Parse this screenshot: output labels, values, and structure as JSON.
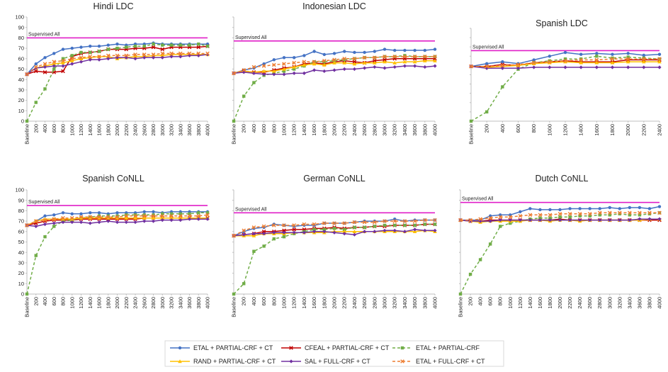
{
  "colors": {
    "etal_pcrf_ct": "#4472C4",
    "cfeal_pcrf_ct": "#C00000",
    "etal_pcrf": "#70AD47",
    "rand_pcrf_ct": "#FFC000",
    "sal_fcrf_ct": "#7030A0",
    "etal_fcrf_ct": "#ED7D31",
    "supervised": "#E020C8",
    "axis": "#BFBFBF"
  },
  "legend": [
    {
      "key": "etal_pcrf_ct",
      "label": "ETAL + PARTIAL-CRF + CT",
      "marker": "circle",
      "dash": false
    },
    {
      "key": "cfeal_pcrf_ct",
      "label": "CFEAL + PARTIAL-CRF + CT",
      "marker": "x",
      "dash": false
    },
    {
      "key": "etal_pcrf",
      "label": "ETAL + PARTIAL-CRF",
      "marker": "square",
      "dash": true
    },
    {
      "key": "rand_pcrf_ct",
      "label": "RAND + PARTIAL-CRF + CT",
      "marker": "triangle",
      "dash": false
    },
    {
      "key": "sal_fcrf_ct",
      "label": "SAL + FULL-CRF + CT",
      "marker": "diamond",
      "dash": false
    },
    {
      "key": "etal_fcrf_ct",
      "label": "ETAL + FULL-CRF + CT",
      "marker": "x",
      "dash": true
    }
  ],
  "chart_data": [
    {
      "type": "line",
      "title": "Hindi LDC",
      "x": [
        "Baseline",
        "200",
        "400",
        "600",
        "800",
        "1000",
        "1200",
        "1400",
        "1600",
        "1800",
        "2000",
        "2200",
        "2400",
        "2600",
        "2800",
        "3000",
        "3200",
        "3400",
        "3600",
        "3800",
        "4000"
      ],
      "y_ticks": [
        "0",
        "10",
        "20",
        "30",
        "40",
        "50",
        "60",
        "70",
        "80",
        "90",
        "100"
      ],
      "ylim": [
        0,
        100
      ],
      "supervised": {
        "label": "Supervised All",
        "value": 80
      },
      "series": [
        {
          "key": "etal_pcrf_ct",
          "values": [
            45,
            55,
            61,
            65,
            69,
            70,
            71,
            72,
            72,
            73,
            74,
            73,
            74,
            74,
            75,
            74,
            74,
            74,
            74,
            74,
            74
          ]
        },
        {
          "key": "cfeal_pcrf_ct",
          "values": [
            45,
            48,
            47,
            47,
            48,
            62,
            65,
            66,
            67,
            69,
            69,
            69,
            70,
            70,
            71,
            69,
            71,
            71,
            71,
            71,
            72
          ]
        },
        {
          "key": "etal_pcrf",
          "values": [
            0,
            18,
            31,
            50,
            60,
            63,
            66,
            66,
            67,
            69,
            70,
            71,
            72,
            72,
            74,
            73,
            73,
            73,
            73,
            74,
            72
          ]
        },
        {
          "key": "rand_pcrf_ct",
          "values": [
            45,
            51,
            53,
            55,
            56,
            58,
            60,
            61,
            62,
            62,
            60,
            61,
            62,
            62,
            63,
            63,
            64,
            64,
            64,
            64,
            64
          ]
        },
        {
          "key": "sal_fcrf_ct",
          "values": [
            45,
            51,
            52,
            53,
            53,
            55,
            57,
            59,
            59,
            60,
            61,
            61,
            60,
            61,
            61,
            61,
            62,
            62,
            63,
            63,
            64
          ]
        },
        {
          "key": "etal_fcrf_ct",
          "values": [
            45,
            52,
            55,
            57,
            58,
            60,
            61,
            62,
            62,
            63,
            63,
            63,
            64,
            64,
            64,
            65,
            65,
            65,
            65,
            65,
            65
          ]
        }
      ]
    },
    {
      "type": "line",
      "title": "Indonesian LDC",
      "x": [
        "Baseline",
        "200",
        "400",
        "600",
        "800",
        "1000",
        "1200",
        "1400",
        "1600",
        "1800",
        "2000",
        "2200",
        "2400",
        "2600",
        "2800",
        "3000",
        "3200",
        "3400",
        "3600",
        "3800",
        "4000"
      ],
      "y_ticks": [],
      "ylim": [
        0,
        100
      ],
      "supervised": {
        "label": "Supervised All",
        "value": 77
      },
      "series": [
        {
          "key": "etal_pcrf_ct",
          "values": [
            46,
            49,
            51,
            55,
            59,
            61,
            61,
            63,
            67,
            64,
            65,
            67,
            66,
            66,
            67,
            69,
            68,
            68,
            68,
            68,
            69
          ]
        },
        {
          "key": "cfeal_pcrf_ct",
          "values": [
            46,
            48,
            47,
            47,
            49,
            51,
            52,
            55,
            56,
            55,
            57,
            58,
            57,
            56,
            58,
            59,
            60,
            60,
            60,
            60,
            60
          ]
        },
        {
          "key": "etal_pcrf",
          "values": [
            0,
            24,
            37,
            44,
            46,
            48,
            50,
            53,
            57,
            57,
            58,
            59,
            60,
            61,
            61,
            62,
            62,
            63,
            62,
            62,
            62
          ]
        },
        {
          "key": "rand_pcrf_ct",
          "values": [
            46,
            48,
            47,
            48,
            48,
            50,
            52,
            54,
            55,
            54,
            56,
            56,
            55,
            56,
            56,
            57,
            56,
            57,
            57,
            58,
            58
          ]
        },
        {
          "key": "sal_fcrf_ct",
          "values": [
            46,
            47,
            46,
            45,
            45,
            45,
            46,
            46,
            49,
            48,
            49,
            50,
            50,
            51,
            52,
            51,
            52,
            53,
            53,
            52,
            53
          ]
        },
        {
          "key": "etal_fcrf_ct",
          "values": [
            46,
            49,
            52,
            53,
            54,
            55,
            56,
            57,
            57,
            58,
            59,
            60,
            60,
            61,
            61,
            62,
            62,
            62,
            62,
            62,
            62
          ]
        }
      ]
    },
    {
      "type": "line",
      "title": "Spanish LDC",
      "x": [
        "Baseline",
        "200",
        "400",
        "600",
        "800",
        "1000",
        "1200",
        "1400",
        "1600",
        "1800",
        "2000",
        "2200",
        "2400"
      ],
      "y_ticks": [],
      "ylim": [
        0,
        100
      ],
      "supervised": {
        "label": "Supervised All",
        "value": 76
      },
      "series": [
        {
          "key": "etal_pcrf_ct",
          "values": [
            59,
            62,
            64,
            62,
            66,
            70,
            74,
            72,
            73,
            72,
            73,
            71,
            72
          ]
        },
        {
          "key": "cfeal_pcrf_ct",
          "values": [
            59,
            59,
            61,
            60,
            63,
            64,
            65,
            64,
            64,
            64,
            66,
            66,
            66
          ]
        },
        {
          "key": "etal_pcrf",
          "values": [
            0,
            10,
            37,
            56,
            63,
            65,
            67,
            67,
            70,
            68,
            69,
            68,
            67
          ]
        },
        {
          "key": "rand_pcrf_ct",
          "values": [
            59,
            58,
            59,
            60,
            62,
            63,
            64,
            63,
            63,
            63,
            64,
            64,
            64
          ]
        },
        {
          "key": "sal_fcrf_ct",
          "values": [
            59,
            57,
            57,
            57,
            58,
            58,
            58,
            58,
            58,
            58,
            58,
            58,
            58
          ]
        },
        {
          "key": "etal_fcrf_ct",
          "values": [
            59,
            59,
            60,
            61,
            63,
            64,
            65,
            66,
            66,
            67,
            67,
            67,
            67
          ]
        }
      ]
    },
    {
      "type": "line",
      "title": "Spanish CoNLL",
      "x": [
        "Baseline",
        "200",
        "400",
        "600",
        "800",
        "1000",
        "1200",
        "1400",
        "1600",
        "1800",
        "2000",
        "2200",
        "2400",
        "2600",
        "2800",
        "3000",
        "3200",
        "3400",
        "3600",
        "3800",
        "4000"
      ],
      "y_ticks": [
        "0",
        "10",
        "20",
        "30",
        "40",
        "50",
        "60",
        "70",
        "80",
        "90",
        "100"
      ],
      "ylim": [
        0,
        100
      ],
      "supervised": {
        "label": "Supervised All",
        "value": 85
      },
      "series": [
        {
          "key": "etal_pcrf_ct",
          "values": [
            66,
            70,
            75,
            76,
            78,
            77,
            77,
            78,
            78,
            77,
            78,
            78,
            78,
            79,
            79,
            78,
            79,
            79,
            79,
            79,
            79
          ]
        },
        {
          "key": "cfeal_pcrf_ct",
          "values": [
            66,
            68,
            70,
            71,
            71,
            71,
            72,
            72,
            72,
            72,
            72,
            72,
            72,
            73,
            73,
            73,
            73,
            73,
            73,
            73,
            73
          ]
        },
        {
          "key": "etal_pcrf",
          "values": [
            0,
            37,
            55,
            65,
            70,
            71,
            73,
            74,
            75,
            75,
            75,
            76,
            76,
            76,
            76,
            77,
            77,
            77,
            77,
            78,
            78
          ]
        },
        {
          "key": "rand_pcrf_ct",
          "values": [
            66,
            70,
            72,
            72,
            72,
            72,
            73,
            73,
            73,
            73,
            73,
            73,
            73,
            73,
            73,
            73,
            73,
            73,
            73,
            73,
            73
          ]
        },
        {
          "key": "sal_fcrf_ct",
          "values": [
            66,
            65,
            67,
            68,
            69,
            69,
            69,
            68,
            69,
            70,
            69,
            69,
            69,
            70,
            70,
            71,
            71,
            71,
            72,
            72,
            72
          ]
        },
        {
          "key": "etal_fcrf_ct",
          "values": [
            66,
            70,
            71,
            72,
            73,
            73,
            74,
            74,
            74,
            74,
            74,
            75,
            75,
            75,
            75,
            75,
            75,
            75,
            75,
            75,
            76
          ]
        }
      ]
    },
    {
      "type": "line",
      "title": "German CoNLL",
      "x": [
        "Baseline",
        "200",
        "400",
        "600",
        "800",
        "1000",
        "1200",
        "1400",
        "1600",
        "1800",
        "2000",
        "2200",
        "2400",
        "2600",
        "2800",
        "3000",
        "3200",
        "3400",
        "3600",
        "3800",
        "4000"
      ],
      "y_ticks": [],
      "ylim": [
        0,
        100
      ],
      "supervised": {
        "label": "Supervised All",
        "value": 78
      },
      "series": [
        {
          "key": "etal_pcrf_ct",
          "values": [
            56,
            60,
            63,
            64,
            67,
            66,
            65,
            66,
            66,
            68,
            68,
            68,
            69,
            70,
            70,
            70,
            72,
            70,
            71,
            71,
            71
          ]
        },
        {
          "key": "cfeal_pcrf_ct",
          "values": [
            56,
            57,
            58,
            60,
            60,
            61,
            62,
            62,
            63,
            63,
            64,
            63,
            64,
            64,
            65,
            65,
            66,
            66,
            66,
            67,
            67
          ]
        },
        {
          "key": "etal_pcrf",
          "values": [
            0,
            10,
            41,
            46,
            53,
            55,
            58,
            60,
            62,
            62,
            63,
            62,
            64,
            64,
            65,
            66,
            66,
            66,
            66,
            67,
            67
          ]
        },
        {
          "key": "rand_pcrf_ct",
          "values": [
            56,
            56,
            56,
            58,
            58,
            58,
            59,
            59,
            59,
            59,
            60,
            60,
            60,
            60,
            60,
            60,
            60,
            60,
            60,
            61,
            60
          ]
        },
        {
          "key": "sal_fcrf_ct",
          "values": [
            56,
            57,
            58,
            58,
            59,
            59,
            59,
            59,
            60,
            60,
            59,
            58,
            57,
            60,
            60,
            61,
            61,
            60,
            62,
            61,
            61
          ]
        },
        {
          "key": "etal_fcrf_ct",
          "values": [
            56,
            61,
            64,
            65,
            66,
            66,
            66,
            67,
            67,
            68,
            68,
            68,
            69,
            69,
            69,
            70,
            70,
            70,
            70,
            71,
            71
          ]
        }
      ]
    },
    {
      "type": "line",
      "title": "Dutch CoNLL",
      "x": [
        "Baseline",
        "200",
        "400",
        "600",
        "800",
        "1000",
        "1200",
        "1400",
        "1600",
        "1800",
        "2000",
        "2200",
        "2400",
        "2600",
        "2800",
        "3000",
        "3200",
        "3400",
        "3600",
        "3800",
        "4000"
      ],
      "y_ticks": [],
      "ylim": [
        0,
        100
      ],
      "supervised": {
        "label": "Supervised All",
        "value": 88
      },
      "series": [
        {
          "key": "etal_pcrf_ct",
          "values": [
            71,
            71,
            71,
            75,
            76,
            76,
            79,
            82,
            81,
            81,
            81,
            82,
            82,
            82,
            82,
            83,
            82,
            83,
            83,
            82,
            84
          ]
        },
        {
          "key": "cfeal_pcrf_ct",
          "values": [
            71,
            70,
            70,
            71,
            71,
            71,
            71,
            71,
            71,
            71,
            72,
            71,
            71,
            71,
            71,
            71,
            71,
            71,
            71,
            71,
            71
          ]
        },
        {
          "key": "etal_pcrf",
          "values": [
            0,
            19,
            33,
            48,
            65,
            68,
            70,
            72,
            73,
            73,
            74,
            74,
            75,
            75,
            76,
            76,
            77,
            76,
            76,
            77,
            78
          ]
        },
        {
          "key": "rand_pcrf_ct",
          "values": [
            71,
            70,
            69,
            70,
            70,
            70,
            70,
            71,
            71,
            70,
            71,
            71,
            70,
            71,
            71,
            71,
            71,
            71,
            71,
            72,
            72
          ]
        },
        {
          "key": "sal_fcrf_ct",
          "values": [
            71,
            70,
            70,
            70,
            71,
            71,
            71,
            71,
            71,
            71,
            71,
            71,
            71,
            71,
            71,
            71,
            71,
            71,
            72,
            72,
            72
          ]
        },
        {
          "key": "etal_fcrf_ct",
          "values": [
            71,
            71,
            72,
            73,
            74,
            74,
            75,
            76,
            76,
            76,
            77,
            77,
            77,
            77,
            78,
            78,
            78,
            78,
            78,
            78,
            78
          ]
        }
      ]
    }
  ]
}
